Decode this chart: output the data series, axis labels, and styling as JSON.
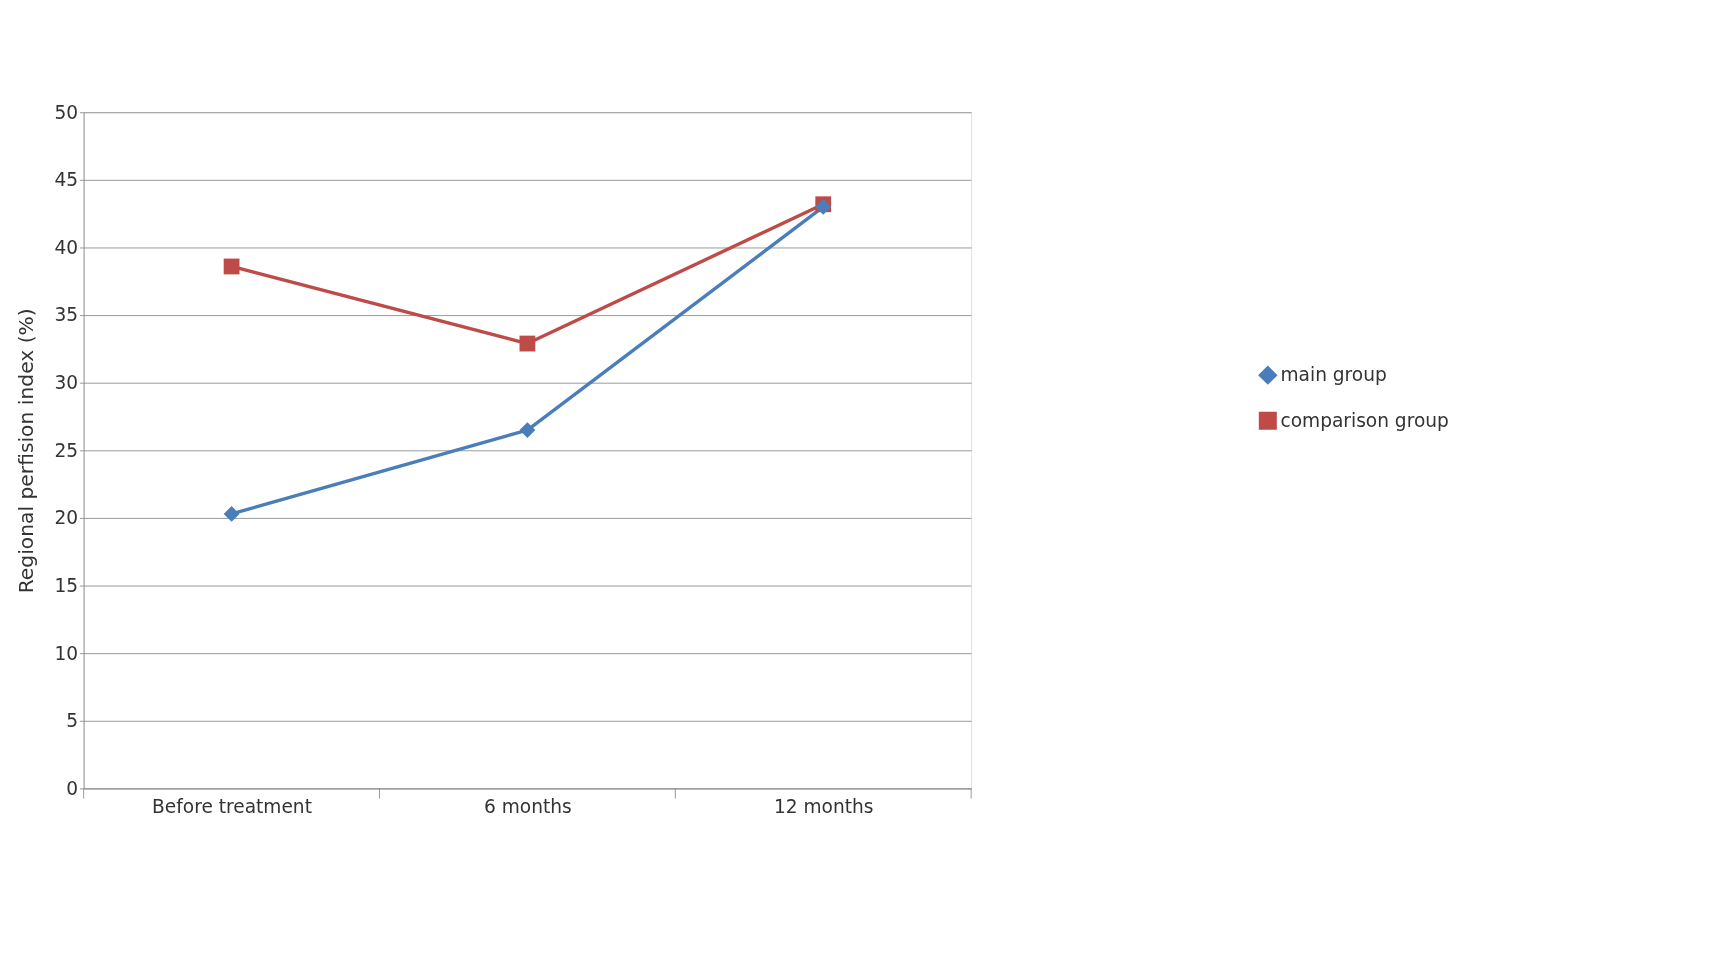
{
  "chart_data": {
    "type": "line",
    "ylabel": "Regional perfision index (%)",
    "categories": [
      "Before treatment",
      "6 months",
      "12 months"
    ],
    "series": [
      {
        "name": "main group",
        "color": "#4a7ebb",
        "marker": "diamond",
        "values": [
          20.3,
          26.5,
          43
        ]
      },
      {
        "name": "comparison group",
        "color": "#be4b48",
        "marker": "square",
        "values": [
          38.6,
          32.9,
          43.2
        ]
      }
    ],
    "ylim": [
      0,
      50
    ],
    "yticks": [
      0,
      5,
      10,
      15,
      20,
      25,
      30,
      35,
      40,
      45,
      50
    ],
    "grid": "y",
    "legend": "right",
    "line_style": "solid"
  }
}
